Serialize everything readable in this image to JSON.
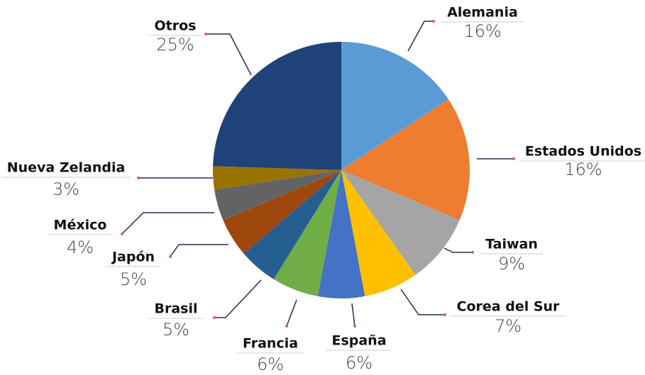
{
  "chart_data": {
    "type": "pie",
    "categories": [
      "Alemania",
      "Estados Unidos",
      "Taiwan",
      "Corea del Sur",
      "España",
      "Francia",
      "Brasil",
      "Japón",
      "México",
      "Nueva Zelandia",
      "Otros"
    ],
    "values": [
      16,
      16,
      9,
      7,
      6,
      6,
      5,
      5,
      4,
      3,
      25
    ],
    "value_labels": [
      "16%",
      "16%",
      "9%",
      "7%",
      "6%",
      "6%",
      "5%",
      "5%",
      "4%",
      "3%",
      "25%"
    ],
    "colors": [
      "#5b9bd5",
      "#ed7d31",
      "#a5a5a5",
      "#ffc000",
      "#4472c4",
      "#70ad47",
      "#255e91",
      "#9e480e",
      "#636363",
      "#997300",
      "#1f4278"
    ]
  }
}
